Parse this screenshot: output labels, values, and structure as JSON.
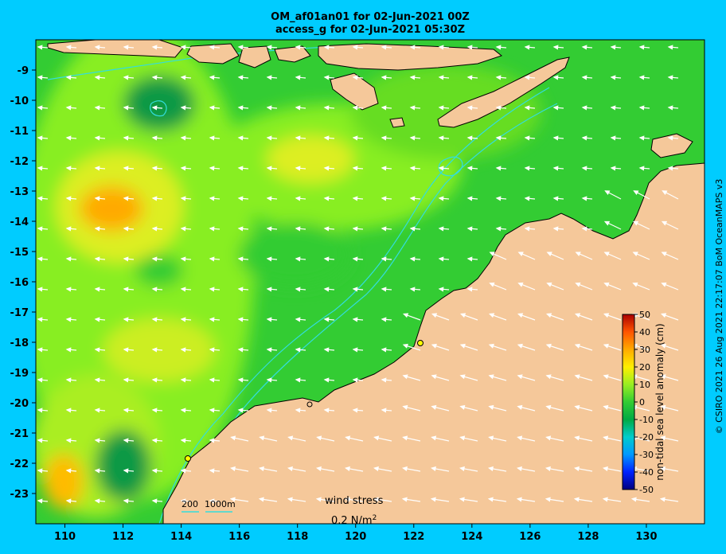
{
  "titles": {
    "line1": "OM_af01an01 for 02-Jun-2021 00Z",
    "line2": "access_g for 02-Jun-2021 05:30Z"
  },
  "map": {
    "lon_range": [
      109,
      132
    ],
    "lat_range": [
      -24,
      -8
    ],
    "lon_ticks": [
      110,
      112,
      114,
      116,
      118,
      120,
      122,
      124,
      126,
      128,
      130
    ],
    "lat_ticks": [
      -9,
      -10,
      -11,
      -12,
      -13,
      -14,
      -15,
      -16,
      -17,
      -18,
      -19,
      -20,
      -21,
      -22,
      -23
    ],
    "colors": {
      "land": "#f5c89a",
      "ocean_base": "#33cc33",
      "contour": "#33dddd",
      "background": "#00ccff"
    }
  },
  "depth_legend": {
    "label_200": "200",
    "label_1000": "1000m"
  },
  "wind_legend": {
    "title": "wind stress",
    "value": "0.2 N/m",
    "superscript": "2"
  },
  "colorbar": {
    "label": "non-tidal sea level anomaly (cm)",
    "min": -50,
    "max": 50,
    "ticks": [
      50,
      40,
      30,
      20,
      10,
      0,
      -10,
      -20,
      -30,
      -40,
      -50
    ]
  },
  "credit": "© CSIRO 2021   26 Aug 2021 22:17:07 BoM OceanMAPS v3"
}
